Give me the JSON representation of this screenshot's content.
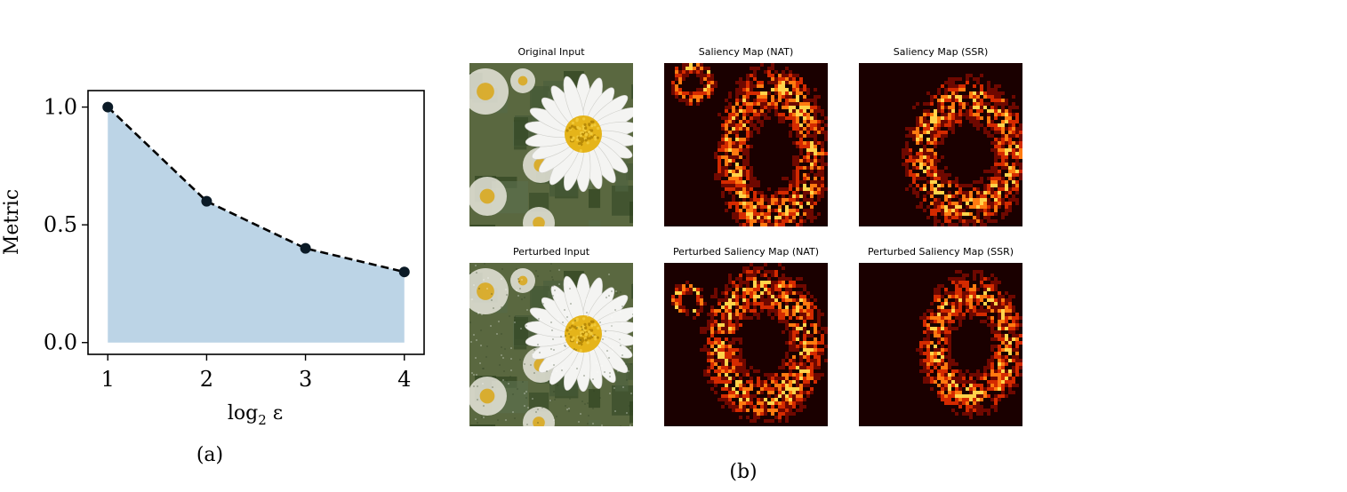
{
  "chart_data": {
    "type": "area",
    "x": [
      1,
      2,
      3,
      4
    ],
    "y": [
      1.0,
      0.6,
      0.4,
      0.3
    ],
    "xlabel": "log₂ ε",
    "ylabel": "Metric",
    "xlim": [
      0.8,
      4.2
    ],
    "ylim": [
      -0.05,
      1.07
    ],
    "xticks": [
      "1",
      "2",
      "3",
      "4"
    ],
    "yticks": [
      "0.0",
      "0.5",
      "1.0"
    ],
    "line_style": "dashed",
    "fill_color": "#bcd4e6",
    "line_color": "#000000",
    "marker_color": "#0b1a26",
    "grid": false
  },
  "captions": {
    "a": "(a)",
    "b": "(b)"
  },
  "panels": [
    {
      "title": "Original Input",
      "kind": "daisy"
    },
    {
      "title": "Saliency Map (NAT)",
      "kind": "heat"
    },
    {
      "title": "Saliency Map (SSR)",
      "kind": "heat"
    },
    {
      "title": "Perturbed Input",
      "kind": "daisy"
    },
    {
      "title": "Perturbed Saliency Map (NAT)",
      "kind": "heat"
    },
    {
      "title": "Perturbed Saliency Map (SSR)",
      "kind": "heat"
    }
  ],
  "colors": {
    "heat_dark": "#1a0000",
    "heat_mid": "#d42a00",
    "heat_hot": "#ffd34a",
    "petal": "#f4f4f2",
    "disc": "#e5b41a",
    "foliage": "#3a4a2a"
  }
}
